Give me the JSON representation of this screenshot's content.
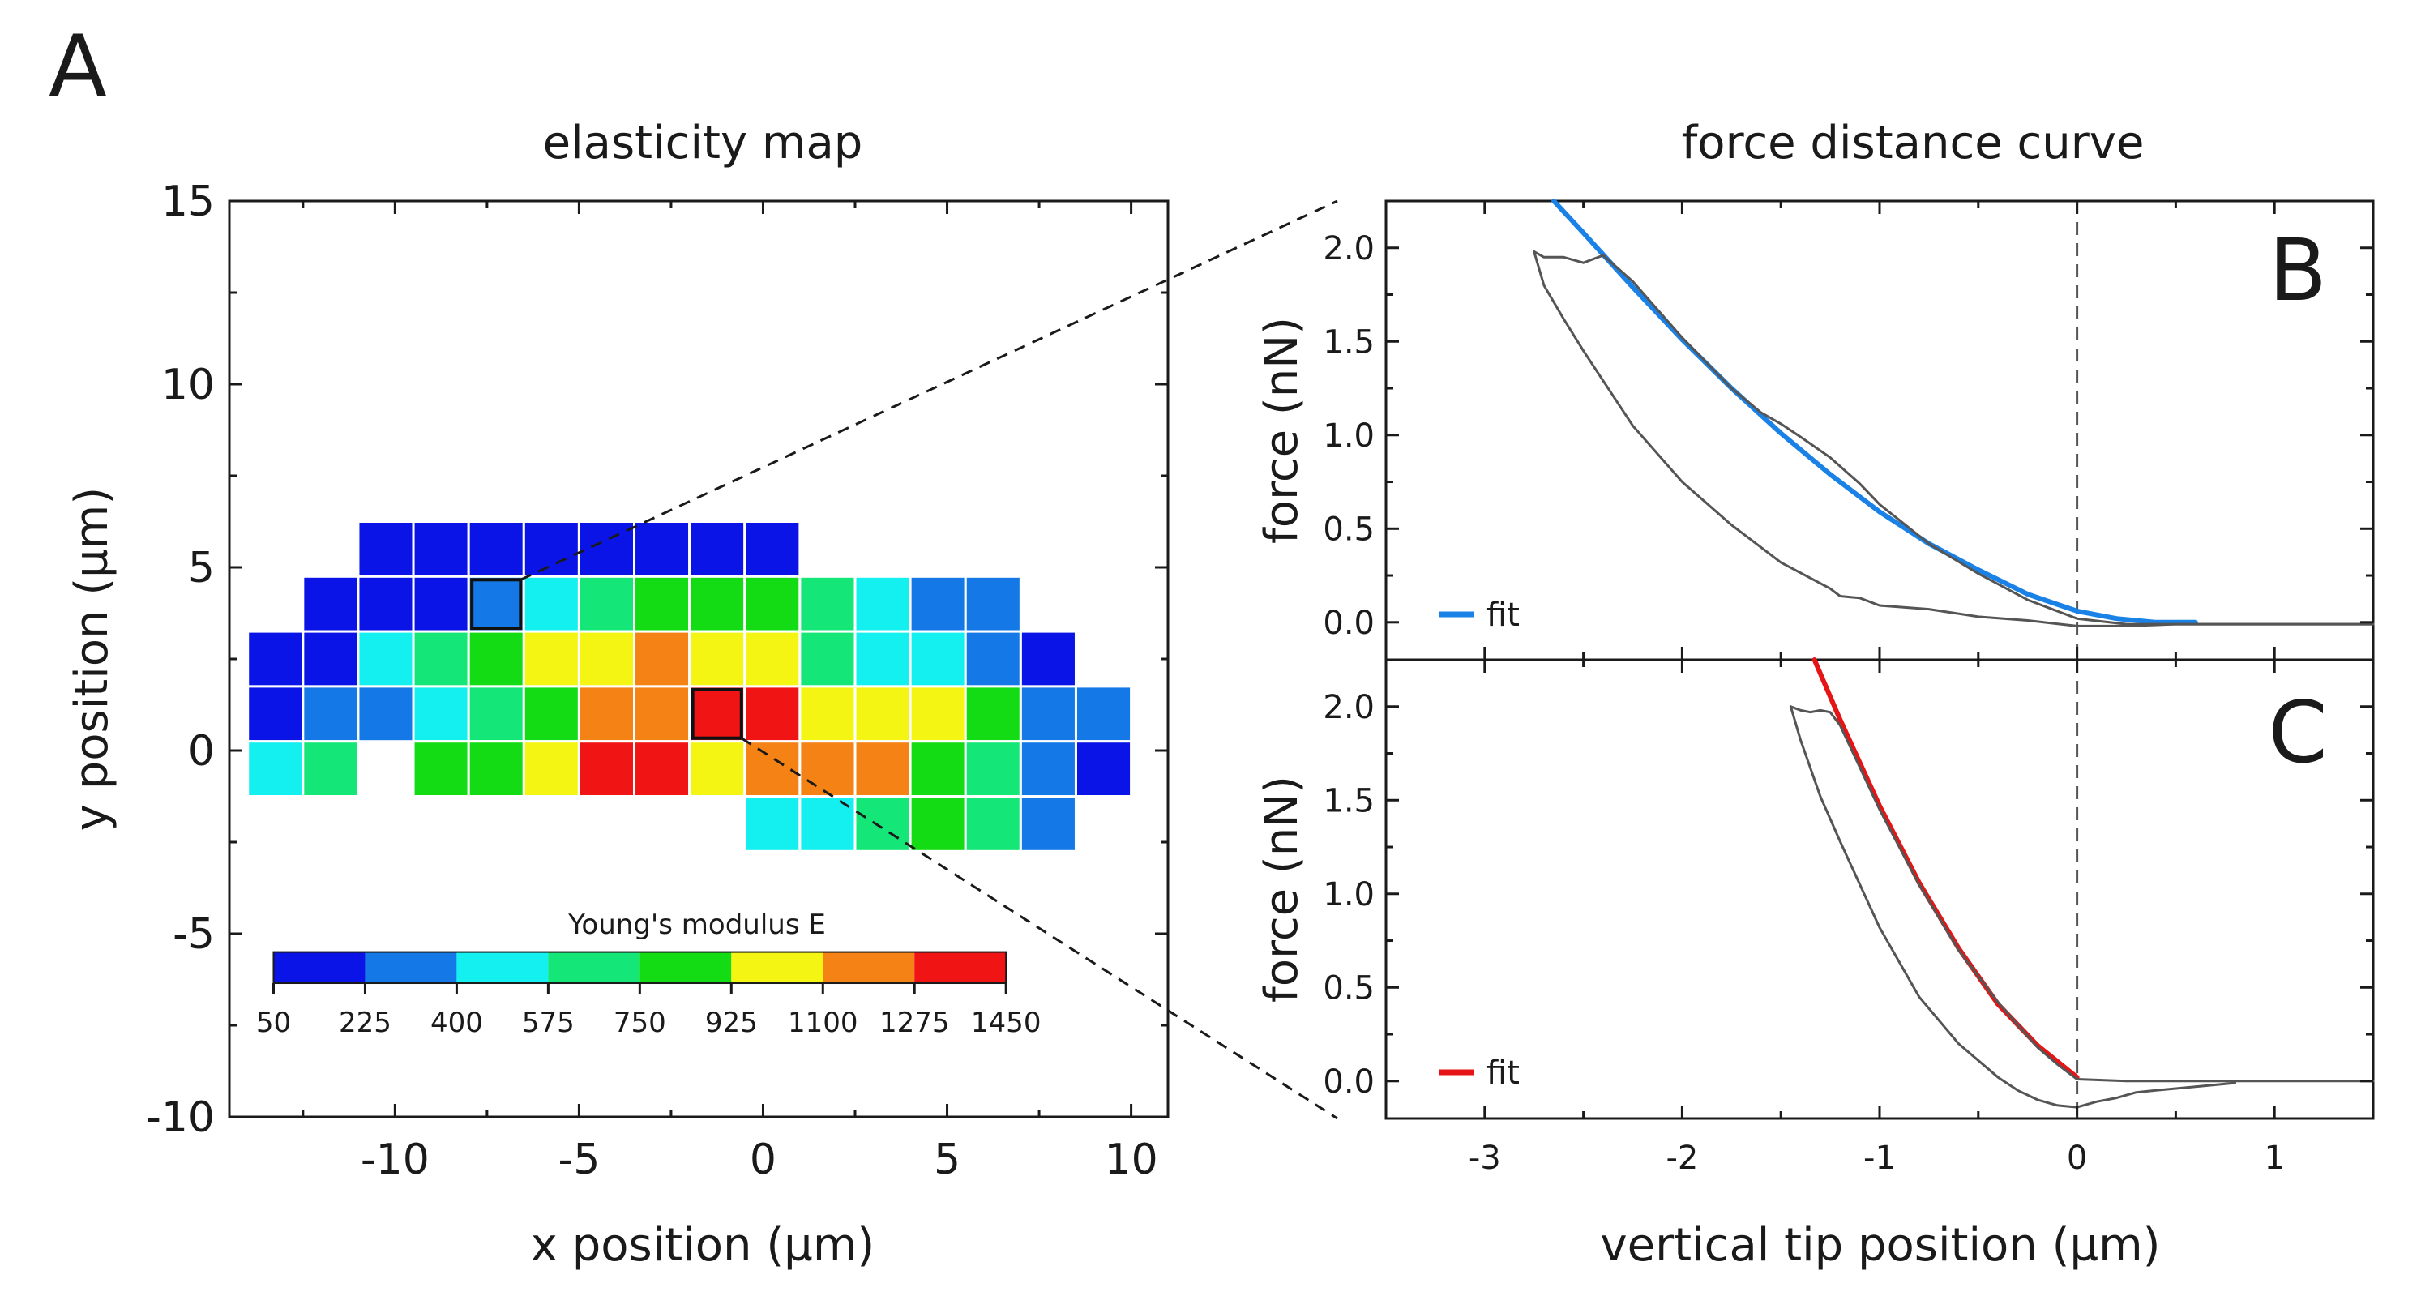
{
  "figure": {
    "panel_labels": {
      "A": "A",
      "B": "B",
      "C": "C"
    }
  },
  "colors": {
    "scale": [
      "#0a14e6",
      "#1478e6",
      "#14f0f0",
      "#14e678",
      "#14dc14",
      "#f5f514",
      "#f58214",
      "#f01414"
    ],
    "data_trace": "#555555",
    "fit_blue": "#1a82e6",
    "fit_red": "#e61414",
    "cell_border": "#ffffff",
    "zero_line": "#555555"
  },
  "chart_data": [
    {
      "id": "map",
      "type": "heatmap",
      "title": "elasticity map",
      "xlabel": "x position (µm)",
      "ylabel": "y position (µm)",
      "xlim": [
        -14.5,
        11
      ],
      "ylim": [
        -10,
        15
      ],
      "x_ticks": [
        -10,
        -5,
        0,
        5,
        10
      ],
      "y_ticks": [
        -10,
        -5,
        0,
        5,
        10,
        15
      ],
      "grid": false,
      "cell_size": 1.5,
      "x_origin": -14.0,
      "y_centers": [
        5.5,
        4.0,
        2.5,
        1.0,
        -0.5,
        -2.0
      ],
      "rows": [
        [
          null,
          null,
          0,
          0,
          0,
          0,
          0,
          0,
          0,
          0,
          null,
          null,
          null,
          null,
          null,
          null
        ],
        [
          null,
          0,
          0,
          0,
          1,
          2,
          3,
          4,
          4,
          4,
          3,
          2,
          1,
          1,
          null,
          null
        ],
        [
          0,
          0,
          2,
          3,
          4,
          5,
          5,
          6,
          5,
          5,
          3,
          2,
          2,
          1,
          0,
          null
        ],
        [
          0,
          1,
          1,
          2,
          3,
          4,
          6,
          6,
          7,
          7,
          5,
          5,
          5,
          4,
          1,
          1
        ],
        [
          2,
          3,
          null,
          4,
          4,
          5,
          7,
          7,
          5,
          6,
          6,
          6,
          4,
          3,
          1,
          0
        ],
        [
          null,
          null,
          null,
          null,
          null,
          null,
          null,
          null,
          null,
          2,
          2,
          3,
          4,
          3,
          1,
          null
        ]
      ],
      "highlighted_cells": [
        {
          "row": 1,
          "col": 4,
          "link": "B"
        },
        {
          "row": 3,
          "col": 8,
          "link": "C"
        }
      ],
      "colorbar": {
        "title": "Young's modulus E",
        "ticks": [
          "50",
          "225",
          "400",
          "575",
          "750",
          "925",
          "1100",
          "1275",
          "1450"
        ],
        "x_start": -13.3,
        "x_end": 6.6,
        "y_top": -5.5,
        "y_bottom": -6.35
      }
    },
    {
      "id": "B",
      "type": "line",
      "title": "force distance curve",
      "ylabel": "force (nN)",
      "xlim": [
        -3.5,
        1.5
      ],
      "ylim": [
        -0.2,
        2.25
      ],
      "y_ticks": [
        0.0,
        0.5,
        1.0,
        1.5,
        2.0
      ],
      "y_tick_labels": [
        "0.0",
        "0.5",
        "1.0",
        "1.5",
        "2.0"
      ],
      "vertical_line_x": 0,
      "legend": {
        "position": "bottom-left",
        "label": "fit"
      },
      "series": [
        {
          "name": "fit",
          "style": "fit",
          "x": [
            -2.65,
            -2.5,
            -2.25,
            -2.0,
            -1.75,
            -1.5,
            -1.25,
            -1.0,
            -0.75,
            -0.5,
            -0.25,
            0.0,
            0.2,
            0.4,
            0.6
          ],
          "y": [
            2.25,
            2.08,
            1.79,
            1.51,
            1.25,
            1.01,
            0.79,
            0.59,
            0.42,
            0.28,
            0.15,
            0.06,
            0.02,
            0.0,
            0.0
          ]
        },
        {
          "style": "data",
          "x": [
            -2.75,
            -2.7,
            -2.6,
            -2.5,
            -2.4,
            -2.25,
            -2.0,
            -1.75,
            -1.6,
            -1.5,
            -1.4,
            -1.25,
            -1.1,
            -1.0,
            -0.75,
            -0.5,
            -0.25,
            0.0,
            0.25,
            0.5,
            0.75,
            1.0,
            1.25,
            1.5
          ],
          "y": [
            1.98,
            1.95,
            1.95,
            1.92,
            1.96,
            1.82,
            1.52,
            1.25,
            1.12,
            1.06,
            0.99,
            0.88,
            0.74,
            0.63,
            0.42,
            0.26,
            0.12,
            0.02,
            -0.01,
            -0.01,
            -0.01,
            -0.01,
            -0.01,
            -0.01
          ]
        },
        {
          "style": "data",
          "x": [
            -2.75,
            -2.7,
            -2.6,
            -2.5,
            -2.25,
            -2.0,
            -1.75,
            -1.5,
            -1.25,
            -1.2,
            -1.1,
            -1.0,
            -0.75,
            -0.5,
            -0.25,
            0.0,
            0.25,
            0.5,
            1.0,
            1.5
          ],
          "y": [
            1.98,
            1.8,
            1.62,
            1.45,
            1.05,
            0.75,
            0.52,
            0.32,
            0.18,
            0.14,
            0.13,
            0.09,
            0.07,
            0.03,
            0.01,
            -0.02,
            -0.02,
            -0.01,
            -0.01,
            -0.01
          ]
        }
      ]
    },
    {
      "id": "C",
      "type": "line",
      "xlabel": "vertical tip position (µm)",
      "ylabel": "force (nN)",
      "xlim": [
        -3.5,
        1.5
      ],
      "ylim": [
        -0.2,
        2.25
      ],
      "x_ticks": [
        -3,
        -2,
        -1,
        0,
        1
      ],
      "y_ticks": [
        0.0,
        0.5,
        1.0,
        1.5,
        2.0
      ],
      "y_tick_labels": [
        "0.0",
        "0.5",
        "1.0",
        "1.5",
        "2.0"
      ],
      "vertical_line_x": 0,
      "legend": {
        "position": "bottom-left",
        "label": "fit"
      },
      "series": [
        {
          "name": "fit",
          "style": "fit_red",
          "x": [
            -1.33,
            -1.2,
            -1.0,
            -0.8,
            -0.6,
            -0.4,
            -0.2,
            0.0
          ],
          "y": [
            2.25,
            1.93,
            1.47,
            1.06,
            0.71,
            0.41,
            0.19,
            0.02
          ]
        },
        {
          "style": "data",
          "x": [
            -1.45,
            -1.4,
            -1.35,
            -1.3,
            -1.25,
            -1.2,
            -1.0,
            -0.8,
            -0.6,
            -0.4,
            -0.2,
            -0.1,
            0.0,
            0.25,
            0.5,
            0.75,
            1.0,
            1.25,
            1.5
          ],
          "y": [
            2.0,
            1.98,
            1.97,
            1.98,
            1.97,
            1.9,
            1.45,
            1.05,
            0.7,
            0.42,
            0.18,
            0.09,
            0.01,
            0.0,
            0.0,
            0.0,
            0.0,
            0.0,
            0.0
          ]
        },
        {
          "style": "data",
          "x": [
            -1.45,
            -1.4,
            -1.3,
            -1.2,
            -1.0,
            -0.8,
            -0.6,
            -0.4,
            -0.3,
            -0.2,
            -0.1,
            0.0,
            0.1,
            0.2,
            0.3,
            0.4,
            0.6,
            0.8
          ],
          "y": [
            2.0,
            1.82,
            1.52,
            1.28,
            0.82,
            0.45,
            0.2,
            0.02,
            -0.05,
            -0.1,
            -0.13,
            -0.14,
            -0.11,
            -0.09,
            -0.06,
            -0.05,
            -0.03,
            -0.01
          ]
        }
      ]
    }
  ]
}
